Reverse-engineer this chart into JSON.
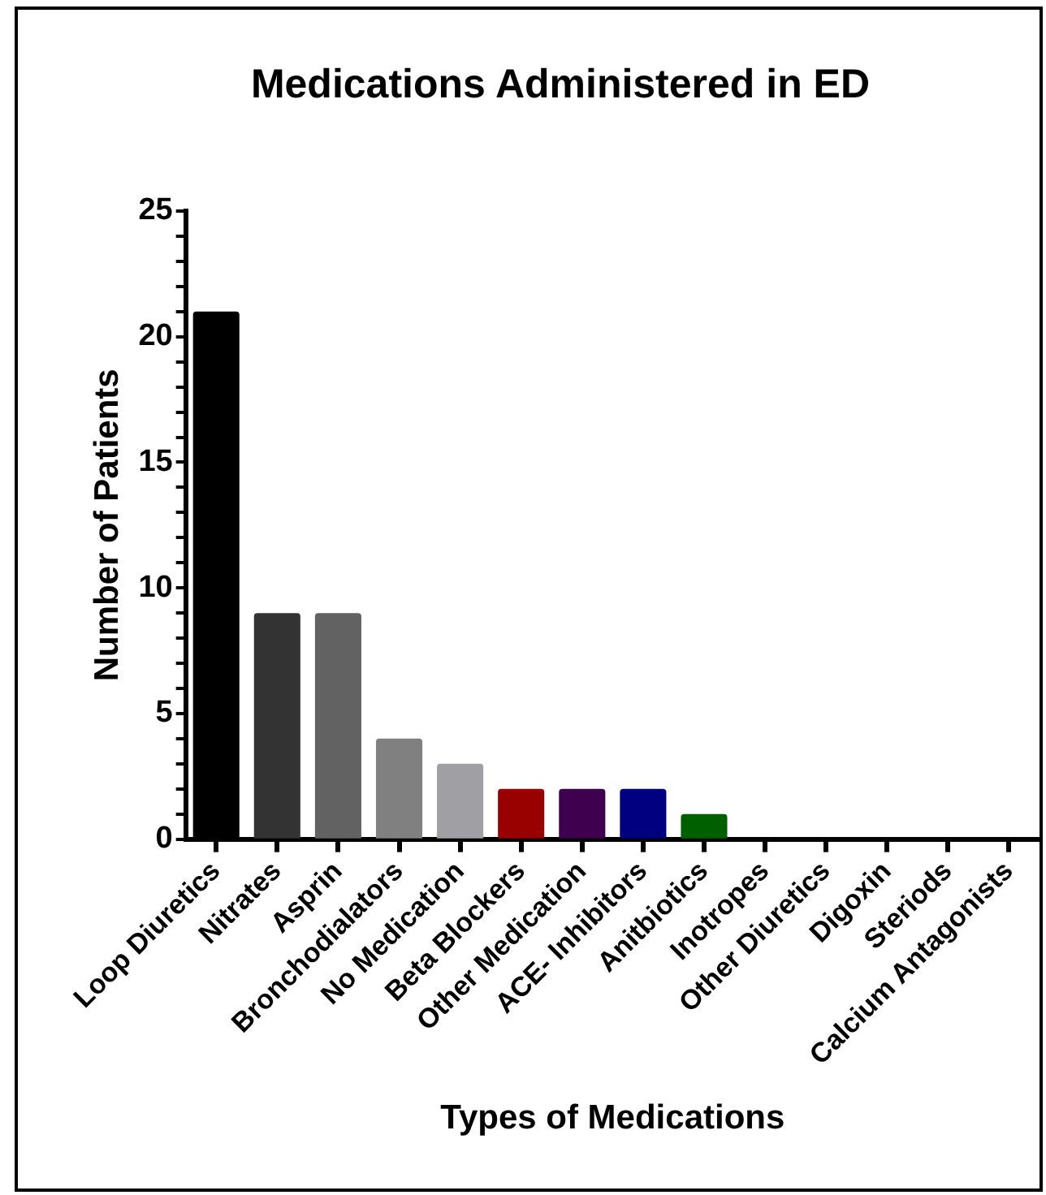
{
  "chart_data": {
    "type": "bar",
    "title": "Medications Administered in ED",
    "xlabel": "Types of Medications",
    "ylabel": "Number of Patients",
    "categories": [
      "Loop Diuretics",
      "Nitrates",
      "Asprin",
      "Bronchodialators",
      "No Medication",
      "Beta Blockers",
      "Other Medication",
      "ACE- Inhibitors",
      "Anitbiotics",
      "Inotropes",
      "Other Diuretics",
      "Digoxin",
      "Steriods",
      "Calcium Antagonists"
    ],
    "values": [
      21,
      9,
      9,
      4,
      3,
      2,
      2,
      2,
      1,
      0,
      0,
      0,
      0,
      0
    ],
    "colors": [
      "#000000",
      "#333333",
      "#626262",
      "#808080",
      "#a0a0a4",
      "#990000",
      "#400050",
      "#000080",
      "#006000",
      "#000000",
      "#000000",
      "#000000",
      "#000000",
      "#000000"
    ],
    "ylim": [
      0,
      25
    ],
    "yticks": [
      0,
      {
        "value": 1,
        "label": null
      },
      {
        "value": 2,
        "label": null
      },
      {
        "value": 3,
        "label": null
      },
      {
        "value": 4,
        "label": null
      },
      5,
      {
        "value": 6,
        "label": null
      },
      {
        "value": 7,
        "label": null
      },
      {
        "value": 8,
        "label": null
      },
      {
        "value": 9,
        "label": null
      },
      10,
      {
        "value": 11,
        "label": null
      },
      {
        "value": 12,
        "label": null
      },
      {
        "value": 13,
        "label": null
      },
      {
        "value": 14,
        "label": null
      },
      15,
      {
        "value": 16,
        "label": null
      },
      {
        "value": 17,
        "label": null
      },
      {
        "value": 18,
        "label": null
      },
      {
        "value": 19,
        "label": null
      },
      20,
      {
        "value": 21,
        "label": null
      },
      {
        "value": 22,
        "label": null
      },
      {
        "value": 23,
        "label": null
      },
      {
        "value": 24,
        "label": null
      },
      25
    ]
  }
}
